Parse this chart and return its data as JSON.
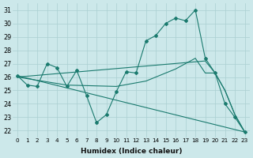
{
  "xlabel": "Humidex (Indice chaleur)",
  "bg_color": "#cce8ea",
  "grid_color": "#aacfd1",
  "line_color": "#1a7a6e",
  "xlim": [
    -0.5,
    23.5
  ],
  "ylim": [
    21.5,
    31.5
  ],
  "xticks": [
    0,
    1,
    2,
    3,
    4,
    5,
    6,
    7,
    8,
    9,
    10,
    11,
    12,
    13,
    14,
    15,
    16,
    17,
    18,
    19,
    20,
    21,
    22,
    23
  ],
  "yticks": [
    22,
    23,
    24,
    25,
    26,
    27,
    28,
    29,
    30,
    31
  ],
  "series": [
    {
      "x": [
        0,
        1,
        2,
        3,
        4,
        5,
        6,
        7,
        8,
        9,
        10,
        11,
        12,
        13,
        14,
        15,
        16,
        17,
        18,
        19,
        20,
        21,
        22,
        23
      ],
      "y": [
        26.1,
        25.4,
        25.3,
        27.0,
        26.7,
        25.3,
        26.5,
        24.6,
        22.6,
        23.2,
        24.9,
        26.4,
        26.3,
        28.7,
        29.1,
        30.0,
        30.4,
        30.2,
        31.0,
        27.4,
        26.3,
        24.0,
        23.0,
        21.9
      ],
      "has_markers": true
    },
    {
      "x": [
        0,
        23
      ],
      "y": [
        26.1,
        21.9
      ],
      "has_markers": false
    },
    {
      "x": [
        0,
        19,
        20,
        21,
        22,
        23
      ],
      "y": [
        26.0,
        27.2,
        26.3,
        25.0,
        23.2,
        21.9
      ],
      "has_markers": false
    },
    {
      "x": [
        0,
        5,
        10,
        13,
        14,
        15,
        16,
        17,
        18,
        19,
        20,
        21,
        22,
        23
      ],
      "y": [
        26.0,
        25.4,
        25.3,
        25.7,
        26.0,
        26.3,
        26.6,
        27.0,
        27.4,
        26.3,
        26.3,
        25.0,
        23.2,
        21.9
      ],
      "has_markers": false
    }
  ]
}
